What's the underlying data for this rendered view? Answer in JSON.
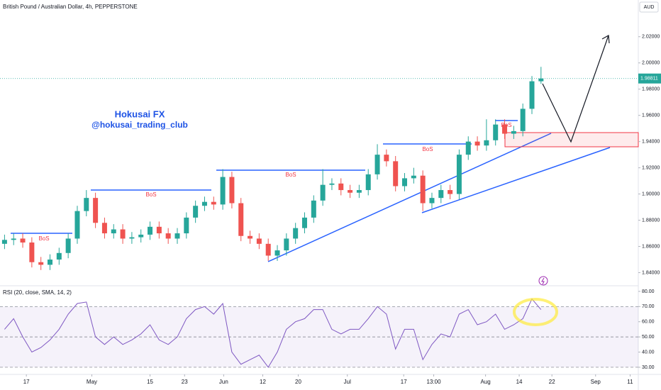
{
  "chart_data": [
    {
      "type": "candlestick",
      "title": "British Pound / Australian Dollar, 4h, PEPPERSTONE",
      "currency": "AUD",
      "open": [
        1.862,
        1.865,
        1.866,
        1.863,
        1.848,
        1.846,
        1.85,
        1.855,
        1.866,
        1.887,
        1.897,
        1.878,
        1.87,
        1.873,
        1.866,
        1.867,
        1.869,
        1.875,
        1.87,
        1.866,
        1.87,
        1.882,
        1.891,
        1.894,
        1.892,
        1.913,
        1.893,
        1.868,
        1.866,
        1.862,
        1.853,
        1.857,
        1.866,
        1.874,
        1.882,
        1.895,
        1.907,
        1.908,
        1.903,
        1.901,
        1.903,
        1.915,
        1.93,
        1.925,
        1.906,
        1.912,
        1.914,
        1.893,
        1.897,
        1.903,
        1.9,
        1.93,
        1.94,
        1.937,
        1.941,
        1.953,
        1.946,
        1.948,
        1.965,
        1.986
      ],
      "high": [
        1.869,
        1.87,
        1.87,
        1.867,
        1.852,
        1.854,
        1.859,
        1.87,
        1.891,
        1.903,
        1.901,
        1.882,
        1.877,
        1.877,
        1.871,
        1.873,
        1.879,
        1.879,
        1.874,
        1.874,
        1.886,
        1.895,
        1.898,
        1.898,
        1.919,
        1.917,
        1.897,
        1.872,
        1.87,
        1.866,
        1.861,
        1.87,
        1.878,
        1.886,
        1.899,
        1.919,
        1.912,
        1.912,
        1.907,
        1.907,
        1.919,
        1.938,
        1.934,
        1.929,
        1.916,
        1.92,
        1.918,
        1.901,
        1.907,
        1.907,
        1.934,
        1.944,
        1.944,
        1.957,
        1.957,
        1.957,
        1.952,
        1.969,
        1.99,
        1.997
      ],
      "low": [
        1.858,
        1.861,
        1.859,
        1.844,
        1.842,
        1.842,
        1.846,
        1.851,
        1.862,
        1.883,
        1.874,
        1.866,
        1.866,
        1.862,
        1.862,
        1.863,
        1.865,
        1.866,
        1.862,
        1.862,
        1.866,
        1.878,
        1.887,
        1.888,
        1.888,
        1.889,
        1.864,
        1.862,
        1.858,
        1.849,
        1.849,
        1.853,
        1.862,
        1.87,
        1.878,
        1.891,
        1.903,
        1.899,
        1.897,
        1.897,
        1.899,
        1.911,
        1.921,
        1.902,
        1.902,
        1.908,
        1.887,
        1.889,
        1.893,
        1.896,
        1.896,
        1.926,
        1.933,
        1.933,
        1.937,
        1.942,
        1.942,
        1.944,
        1.961,
        1.984
      ],
      "close": [
        1.865,
        1.866,
        1.863,
        1.848,
        1.846,
        1.85,
        1.855,
        1.866,
        1.887,
        1.897,
        1.878,
        1.87,
        1.873,
        1.866,
        1.867,
        1.869,
        1.875,
        1.87,
        1.866,
        1.87,
        1.882,
        1.891,
        1.894,
        1.892,
        1.913,
        1.893,
        1.868,
        1.866,
        1.862,
        1.853,
        1.857,
        1.866,
        1.874,
        1.882,
        1.895,
        1.907,
        1.908,
        1.903,
        1.901,
        1.903,
        1.915,
        1.93,
        1.925,
        1.906,
        1.912,
        1.914,
        1.893,
        1.897,
        1.903,
        1.9,
        1.93,
        1.94,
        1.937,
        1.941,
        1.953,
        1.946,
        1.948,
        1.965,
        1.986,
        1.9881
      ],
      "up_color": "#26a69a",
      "down_color": "#ef5350",
      "last_price": 1.98811,
      "xlim": [
        -0.5,
        69.7
      ],
      "xticks": [
        {
          "value": 2.4,
          "label": "17"
        },
        {
          "value": 9.6,
          "label": "May"
        },
        {
          "value": 16.0,
          "label": "15"
        },
        {
          "value": 19.8,
          "label": "23"
        },
        {
          "value": 24.1,
          "label": "Jun"
        },
        {
          "value": 28.4,
          "label": "12"
        },
        {
          "value": 32.3,
          "label": "20"
        },
        {
          "value": 37.7,
          "label": "Jul"
        },
        {
          "value": 43.9,
          "label": "17"
        },
        {
          "value": 47.2,
          "label": "13:00"
        },
        {
          "value": 52.9,
          "label": "Aug"
        },
        {
          "value": 56.6,
          "label": "14"
        },
        {
          "value": 60.2,
          "label": "22"
        },
        {
          "value": 65.0,
          "label": "Sep"
        },
        {
          "value": 68.8,
          "label": "11"
        }
      ],
      "ylim": [
        1.83,
        2.048
      ],
      "yticks": [
        {
          "value": 2.02,
          "label": "2.02000"
        },
        {
          "value": 2.0,
          "label": "2.00000"
        },
        {
          "value": 1.98,
          "label": "1.98000"
        },
        {
          "value": 1.96,
          "label": "1.96000"
        },
        {
          "value": 1.94,
          "label": "1.94000"
        },
        {
          "value": 1.92,
          "label": "1.92000"
        },
        {
          "value": 1.9,
          "label": "1.90000"
        },
        {
          "value": 1.88,
          "label": "1.88000"
        },
        {
          "value": 1.86,
          "label": "1.86000"
        },
        {
          "value": 1.84,
          "label": "1.84000"
        }
      ],
      "annotations": {
        "watermark": [
          "Hokusai FX",
          "@hokusai_trading_club"
        ],
        "bos": [
          "BoS",
          "BoS",
          "BoS",
          "BoS",
          "BoS"
        ]
      }
    },
    {
      "type": "line",
      "title": "RSI (20, close, SMA, 14, 2)",
      "color": "#7e57c2",
      "band_color": "#7e57c2",
      "values": [
        55,
        62,
        50,
        40,
        43,
        48,
        55,
        65,
        72,
        73,
        50,
        45,
        50,
        45,
        48,
        52,
        58,
        48,
        45,
        50,
        62,
        68,
        70,
        65,
        72,
        40,
        32,
        35,
        38,
        30,
        40,
        55,
        60,
        62,
        68,
        68,
        55,
        52,
        55,
        55,
        62,
        70,
        65,
        42,
        55,
        55,
        35,
        45,
        52,
        50,
        65,
        68,
        58,
        60,
        65,
        55,
        58,
        62,
        75,
        68
      ],
      "ylim": [
        25.3,
        83.7
      ],
      "yticks": [
        {
          "value": 80,
          "label": "80.00"
        },
        {
          "value": 70,
          "label": "70.00"
        },
        {
          "value": 60,
          "label": "60.00"
        },
        {
          "value": 50,
          "label": "50.00"
        },
        {
          "value": 40,
          "label": "40.00"
        },
        {
          "value": 30,
          "label": "30.00"
        }
      ]
    }
  ]
}
